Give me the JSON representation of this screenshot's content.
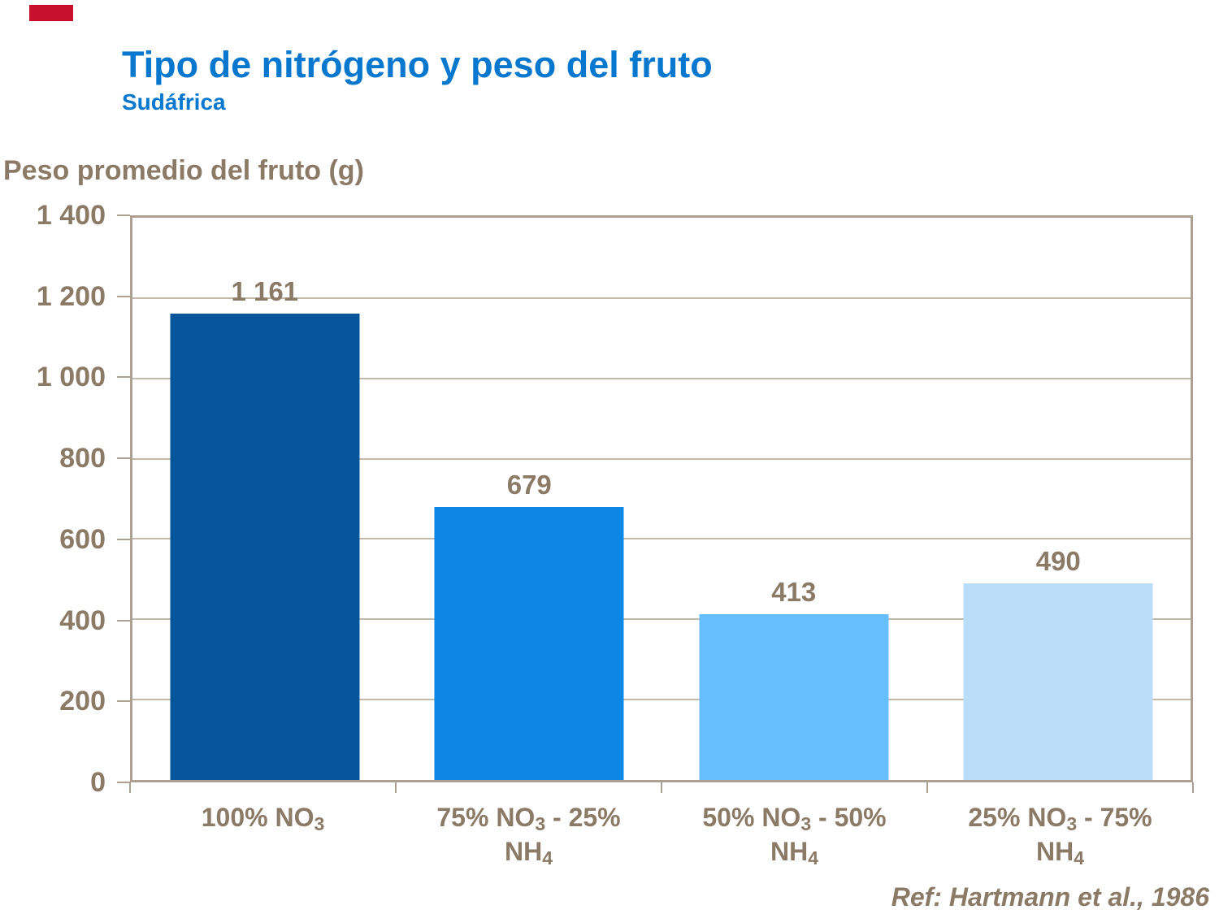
{
  "slide": {
    "title": "Tipo de nitrógeno y peso del fruto",
    "subtitle": "Sudáfrica",
    "reference": "Ref: Hartmann et al., 1986",
    "colors": {
      "accent_red": "#c8102e",
      "title_blue": "#0878ce",
      "text_brown": "#8a7a66",
      "gridline": "#c3b9ab",
      "axis": "#aba092"
    }
  },
  "chart_data": {
    "type": "bar",
    "title": "Tipo de nitrógeno y peso del fruto",
    "subtitle": "Sudáfrica",
    "ylabel": "Peso promedio del fruto (g)",
    "xlabel": "",
    "ylim": [
      0,
      1400
    ],
    "grid": true,
    "legend": false,
    "yticks": [
      {
        "value": 0,
        "label": "0"
      },
      {
        "value": 200,
        "label": "200"
      },
      {
        "value": 400,
        "label": "400"
      },
      {
        "value": 600,
        "label": "600"
      },
      {
        "value": 800,
        "label": "800"
      },
      {
        "value": 1000,
        "label": "1 000"
      },
      {
        "value": 1200,
        "label": "1 200"
      },
      {
        "value": 1400,
        "label": "1 400"
      }
    ],
    "categories": [
      "100% NO₃",
      "75% NO₃ - 25% NH₄",
      "50% NO₃ - 50% NH₄",
      "25% NO₃ - 75% NH₄"
    ],
    "category_lines": [
      [
        "100% NO₃"
      ],
      [
        "75% NO₃ - 25%",
        "NH₄"
      ],
      [
        "50% NO₃ - 50%",
        "NH₄"
      ],
      [
        "25% NO₃ - 75%",
        "NH₄"
      ]
    ],
    "values": [
      1161,
      679,
      413,
      490
    ],
    "value_labels": [
      "1 161",
      "679",
      "413",
      "490"
    ],
    "bar_colors": [
      "#045599",
      "#0c87e6",
      "#66befc",
      "#badef8"
    ],
    "annotation": "Ref: Hartmann et al., 1986"
  }
}
